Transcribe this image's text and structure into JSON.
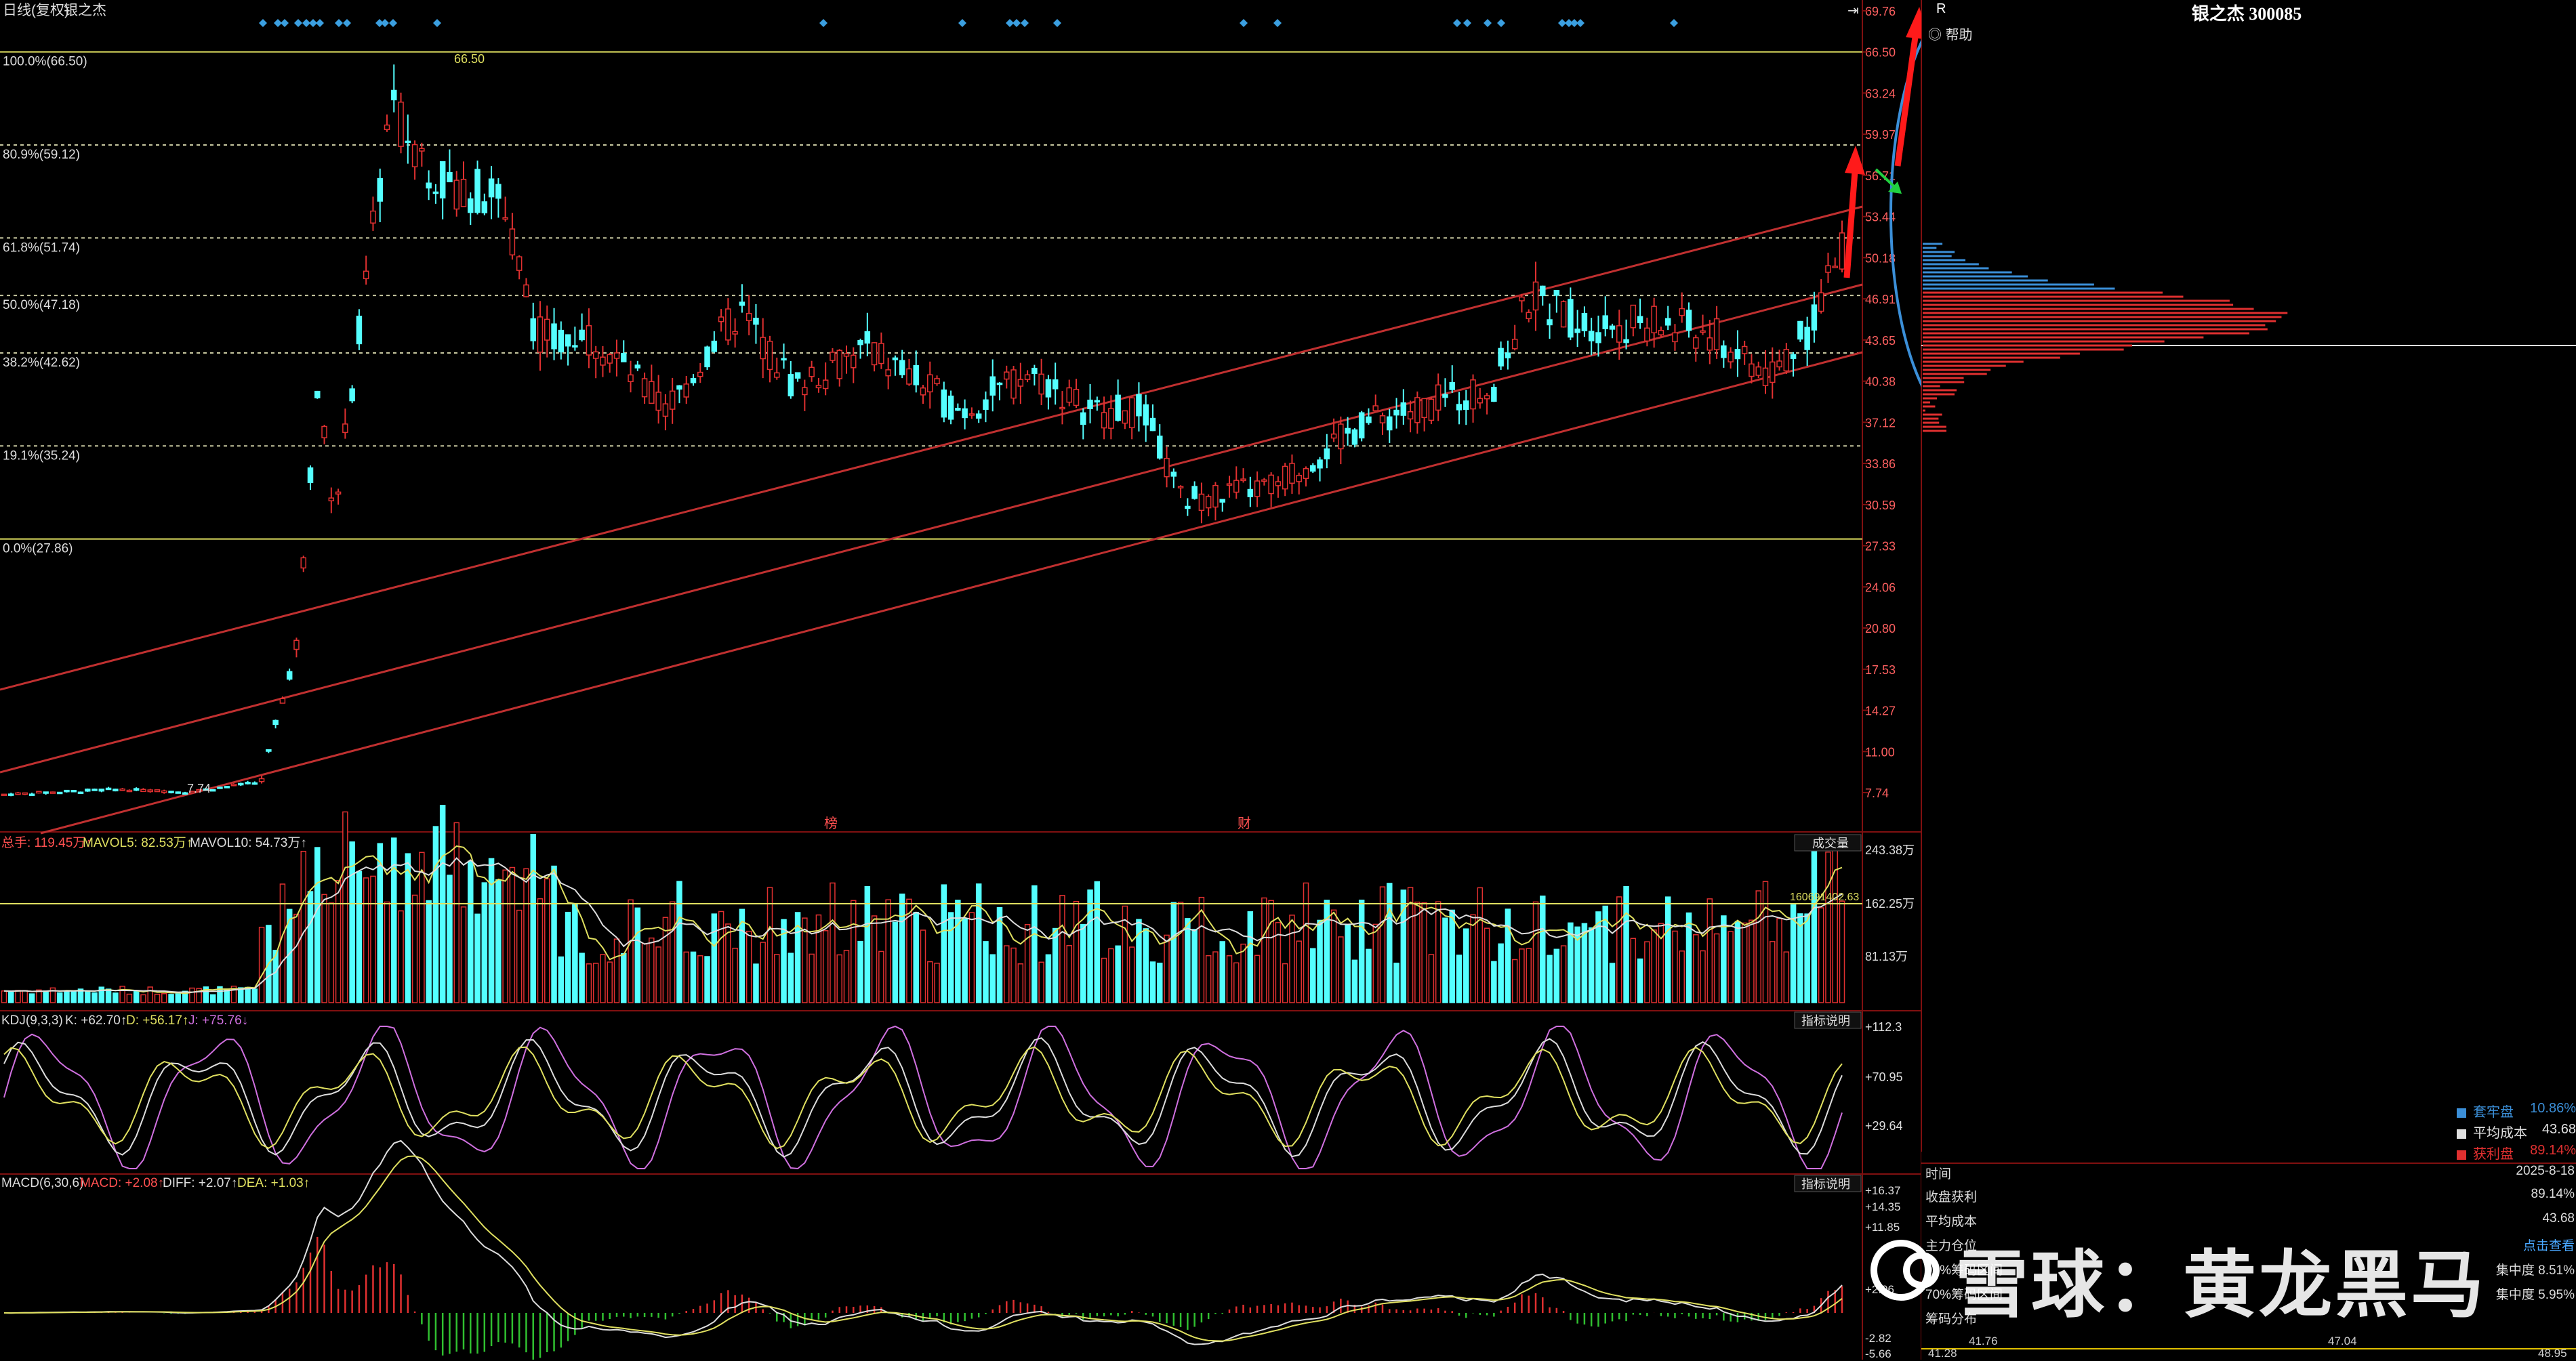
{
  "header": {
    "mode_label": "日线(复权)",
    "stock_short": "银之杰"
  },
  "fib_levels": [
    {
      "label": "100.0%(66.50)",
      "price": 66.5
    },
    {
      "label": "80.9%(59.12)",
      "price": 59.12
    },
    {
      "label": "61.8%(51.74)",
      "price": 51.74
    },
    {
      "label": "50.0%(47.18)",
      "price": 47.18
    },
    {
      "label": "38.2%(42.62)",
      "price": 42.62
    },
    {
      "label": "19.1%(35.24)",
      "price": 35.24
    },
    {
      "label": "0.0%(27.86)",
      "price": 27.86
    }
  ],
  "price_axis": [
    "69.76",
    "66.50",
    "63.24",
    "59.97",
    "56.71",
    "53.44",
    "50.18",
    "46.91",
    "43.65",
    "40.38",
    "37.12",
    "33.86",
    "30.59",
    "27.33",
    "24.06",
    "20.80",
    "17.53",
    "14.27",
    "11.00",
    "7.74"
  ],
  "annotations": {
    "high_label": "66.50",
    "low_label": "7.74",
    "event_1": "榜",
    "event_2": "财"
  },
  "volume": {
    "title": "总手: 119.45万↑",
    "ma5": "MAVOL5: 82.53万↑",
    "ma10": "MAVOL10: 54.73万↑",
    "button": "成交量",
    "axis": [
      "243.38万",
      "162.25万",
      "81.13万"
    ],
    "ref_line_label": "160691402.63"
  },
  "kdj": {
    "title": "KDJ(9,3,3)",
    "k": "K: +62.70↑",
    "d": "D: +56.17↑",
    "j": "J: +75.76↓",
    "button": "指标说明",
    "axis": [
      "+112.3",
      "+70.95",
      "+29.64"
    ]
  },
  "macd": {
    "title": "MACD(6,30,6)",
    "macd": "MACD: +2.08↑",
    "diff": "DIFF: +2.07↑",
    "dea": "DEA: +1.03↑",
    "button": "指标说明",
    "axis": [
      "+16.37",
      "+14.35",
      "+11.85",
      "+2.06",
      "-2.82",
      "-5.66"
    ]
  },
  "right_panel": {
    "r_label": "R",
    "title": "银之杰 300085",
    "help": "帮助",
    "legend": [
      {
        "label": "套牢盘",
        "value": "10.86%",
        "color": "#3b8fd8"
      },
      {
        "label": "平均成本",
        "value": "43.68",
        "color": "#e0e0e0"
      },
      {
        "label": "获利盘",
        "value": "89.14%",
        "color": "#e03030"
      }
    ],
    "info": [
      {
        "k": "时间",
        "v": "2025-8-18"
      },
      {
        "k": "收盘获利",
        "v": "89.14%"
      },
      {
        "k": "平均成本",
        "v": "43.68"
      },
      {
        "k": "主力仓位",
        "v": "点击查看"
      },
      {
        "k": "90%筹码区间",
        "v": "集中度 8.51%"
      },
      {
        "k": "70%筹码区间",
        "v": "集中度 5.95%"
      },
      {
        "k": "筹码分布",
        "v": ""
      }
    ],
    "bottom_axis": [
      "41.28",
      "41.76",
      "47.04",
      "48.95"
    ]
  },
  "watermark": "雪球：黄龙黑马",
  "colors": {
    "up": "#e03030",
    "down": "#54ffff",
    "fib": "#e0e060",
    "channel": "#c03030",
    "circle": "#3b8fd8"
  }
}
